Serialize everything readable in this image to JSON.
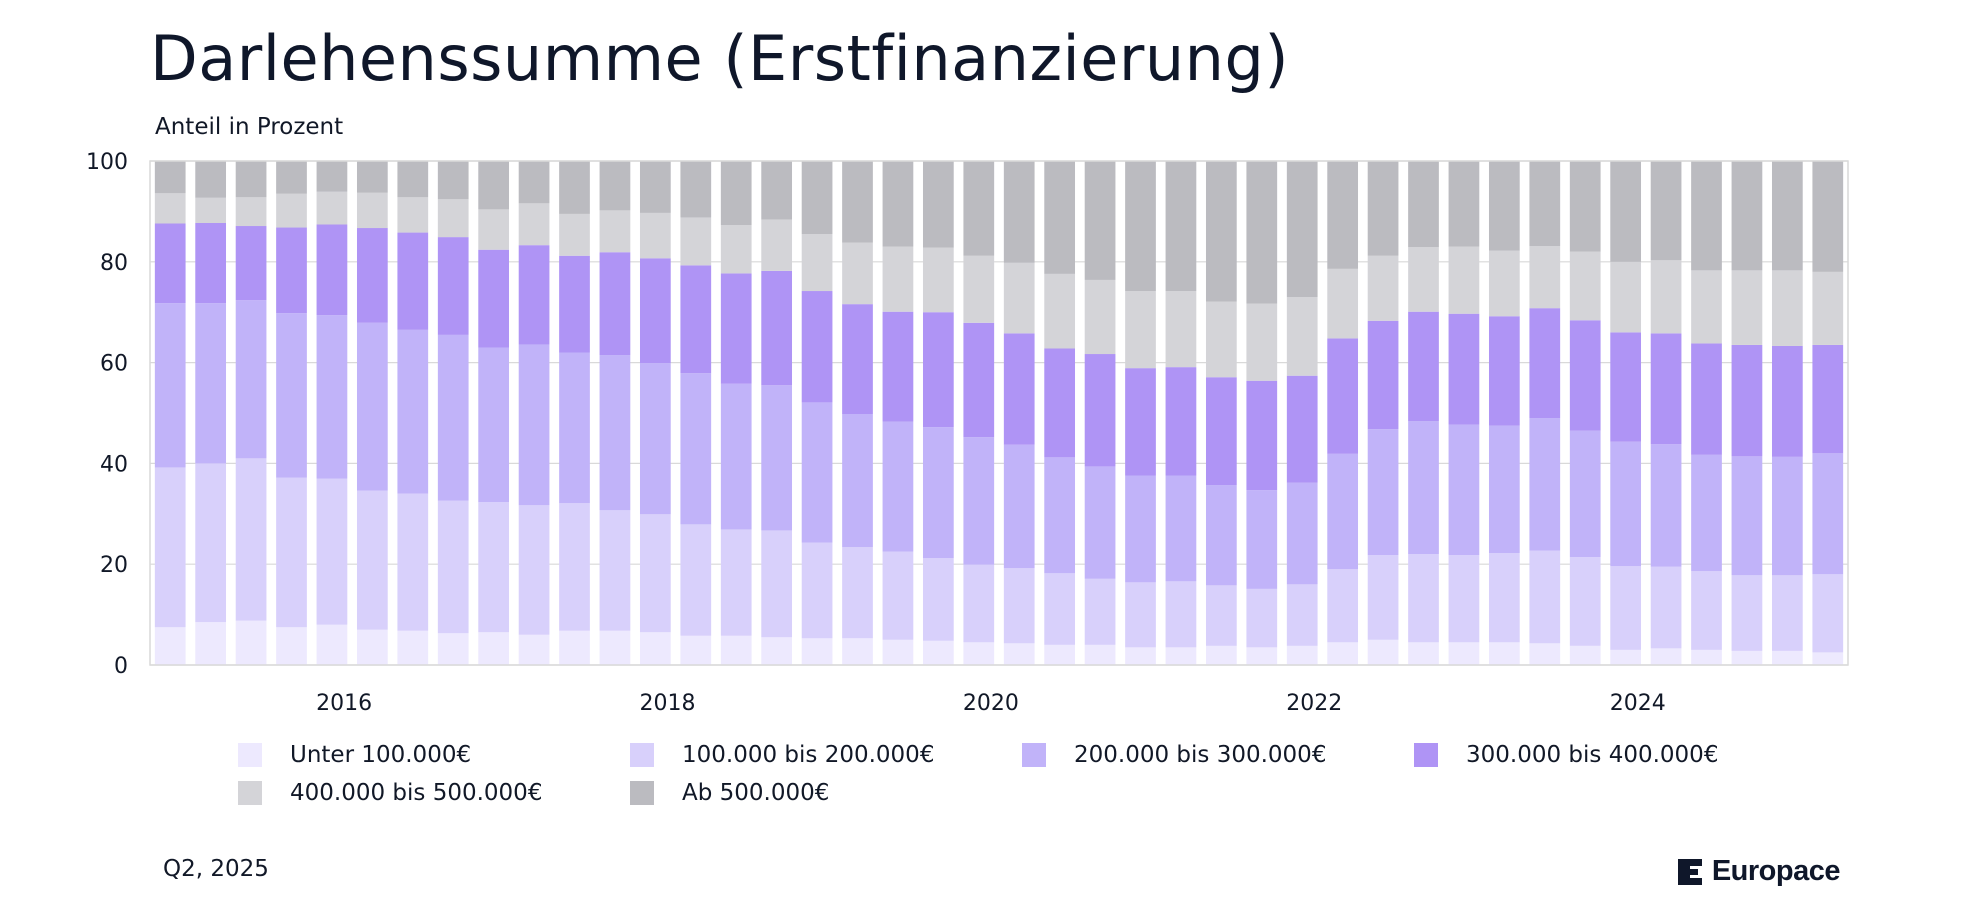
{
  "title": "Darlehenssumme (Erstfinanzierung)",
  "subtitle": "Anteil in Prozent",
  "footer": {
    "period": "Q2, 2025",
    "brand": "Europace"
  },
  "colors": {
    "u100": "#ede9fe",
    "b100_200": "#d8d0fb",
    "b200_300": "#c1b3f9",
    "b300_400": "#af94f5",
    "b400_500": "#d4d4d8",
    "ab500": "#bbbbc0",
    "grid": "#d9d9d9",
    "brand": "#0f172a"
  },
  "legend": [
    {
      "label": "Unter 100.000€",
      "color": "#ede9fe"
    },
    {
      "label": "100.000 bis 200.000€",
      "color": "#d8d0fb"
    },
    {
      "label": "200.000 bis 300.000€",
      "color": "#c1b3f9"
    },
    {
      "label": "300.000 bis 400.000€",
      "color": "#af94f5"
    },
    {
      "label": "400.000 bis 500.000€",
      "color": "#d4d4d8"
    },
    {
      "label": "Ab 500.000€",
      "color": "#bbbbc0"
    }
  ],
  "chart_data": {
    "type": "bar",
    "stacked": true,
    "title": "Darlehenssumme (Erstfinanzierung)",
    "subtitle": "Anteil in Prozent",
    "ylim": [
      0,
      100
    ],
    "yticks": [
      0,
      20,
      40,
      60,
      80,
      100
    ],
    "xticks": [
      "2016",
      "2018",
      "2020",
      "2022",
      "2024"
    ],
    "xtick_positions": [
      4.8,
      12.8,
      20.8,
      28.8,
      36.8
    ],
    "grid": true,
    "legend_position": "bottom",
    "categories": [
      "2015-Q1",
      "2015-Q2",
      "2015-Q3",
      "2015-Q4",
      "2016-Q1",
      "2016-Q2",
      "2016-Q3",
      "2016-Q4",
      "2017-Q1",
      "2017-Q2",
      "2017-Q3",
      "2017-Q4",
      "2018-Q1",
      "2018-Q2",
      "2018-Q3",
      "2018-Q4",
      "2019-Q1",
      "2019-Q2",
      "2019-Q3",
      "2019-Q4",
      "2020-Q1",
      "2020-Q2",
      "2020-Q3",
      "2020-Q4",
      "2021-Q1",
      "2021-Q2",
      "2021-Q3",
      "2021-Q4",
      "2022-Q1",
      "2022-Q2",
      "2022-Q3",
      "2022-Q4",
      "2023-Q1",
      "2023-Q2",
      "2023-Q3",
      "2023-Q4",
      "2024-Q1",
      "2024-Q2",
      "2024-Q3",
      "2024-Q4",
      "2025-Q1",
      "2025-Q2"
    ],
    "series": [
      {
        "name": "Unter 100.000€",
        "color": "#ede9fe",
        "values": [
          7.5,
          8.5,
          8.8,
          7.5,
          8.0,
          7.0,
          6.8,
          6.3,
          6.5,
          6.0,
          6.8,
          6.8,
          6.5,
          5.8,
          5.8,
          5.5,
          5.3,
          5.3,
          5.0,
          4.8,
          4.5,
          4.3,
          4.0,
          4.0,
          3.5,
          3.5,
          3.8,
          3.5,
          3.8,
          4.5,
          5.0,
          4.5,
          4.5,
          4.5,
          4.3,
          3.8,
          3.0,
          3.3,
          3.0,
          2.8,
          2.8,
          2.5
        ]
      },
      {
        "name": "100.000 bis 200.000€",
        "color": "#d8d0fb",
        "values": [
          31.7,
          31.5,
          32.2,
          29.7,
          29.0,
          27.6,
          27.2,
          26.3,
          25.8,
          25.7,
          25.3,
          23.9,
          23.4,
          22.1,
          21.1,
          21.2,
          19.0,
          18.1,
          17.5,
          16.4,
          15.4,
          14.9,
          14.2,
          13.1,
          12.9,
          13.1,
          12.0,
          11.6,
          12.2,
          14.5,
          16.8,
          17.5,
          17.3,
          17.7,
          18.4,
          17.6,
          16.6,
          16.2,
          15.6,
          15.0,
          15.0,
          15.5
        ]
      },
      {
        "name": "200.000 bis 300.000€",
        "color": "#c1b3f9",
        "values": [
          32.6,
          31.8,
          31.4,
          32.6,
          32.4,
          33.3,
          32.5,
          32.9,
          30.7,
          31.9,
          29.9,
          30.8,
          30.0,
          30.0,
          28.9,
          28.8,
          27.8,
          26.4,
          25.8,
          26.0,
          25.3,
          24.5,
          23.0,
          22.3,
          21.2,
          21.0,
          19.9,
          19.6,
          20.2,
          22.9,
          25.0,
          26.4,
          25.9,
          25.3,
          26.3,
          25.1,
          24.7,
          24.3,
          23.1,
          23.6,
          23.5,
          24.0
        ]
      },
      {
        "name": "300.000 bis 400.000€",
        "color": "#af94f5",
        "values": [
          15.8,
          15.9,
          14.7,
          17.0,
          18.0,
          18.8,
          19.3,
          19.4,
          19.4,
          19.7,
          19.2,
          20.4,
          20.8,
          21.4,
          21.9,
          22.7,
          22.1,
          21.8,
          21.8,
          22.8,
          22.7,
          22.1,
          21.6,
          22.3,
          21.3,
          21.5,
          21.4,
          21.7,
          21.2,
          22.9,
          21.5,
          21.7,
          22.0,
          21.7,
          21.8,
          21.9,
          21.7,
          22.0,
          22.1,
          22.1,
          22.0,
          21.5
        ]
      },
      {
        "name": "400.000 bis 500.000€",
        "color": "#d4d4d8",
        "values": [
          6.0,
          5.0,
          5.7,
          6.7,
          6.5,
          7.0,
          7.0,
          7.5,
          8.0,
          8.3,
          8.3,
          8.3,
          9.0,
          9.5,
          9.6,
          10.2,
          11.3,
          12.2,
          12.9,
          12.8,
          13.3,
          14.0,
          14.8,
          14.7,
          15.3,
          15.1,
          15.0,
          15.3,
          15.6,
          13.8,
          12.9,
          12.8,
          13.3,
          13.0,
          12.3,
          13.6,
          14.0,
          14.5,
          14.5,
          14.8,
          15.0,
          14.5
        ]
      },
      {
        "name": "Ab 500.000€",
        "color": "#bbbbc0",
        "values": [
          6.4,
          7.3,
          7.2,
          6.5,
          6.1,
          6.3,
          7.2,
          7.6,
          9.6,
          8.4,
          10.5,
          9.8,
          10.3,
          11.2,
          12.7,
          11.6,
          14.5,
          16.2,
          17.0,
          17.2,
          18.8,
          20.2,
          22.4,
          23.6,
          25.8,
          25.8,
          27.9,
          28.3,
          27.0,
          21.4,
          18.8,
          17.1,
          17.0,
          17.8,
          16.9,
          18.0,
          20.0,
          19.7,
          21.7,
          21.7,
          21.7,
          22.0
        ]
      }
    ]
  }
}
